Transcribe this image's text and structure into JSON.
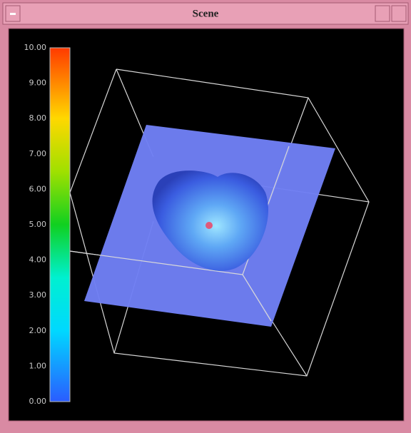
{
  "window": {
    "title": "Scene"
  },
  "colorbar": {
    "labels": [
      "10.00",
      "9.00",
      "8.00",
      "7.00",
      "6.00",
      "5.00",
      "4.00",
      "3.00",
      "2.00",
      "1.00",
      "0.00"
    ]
  }
}
